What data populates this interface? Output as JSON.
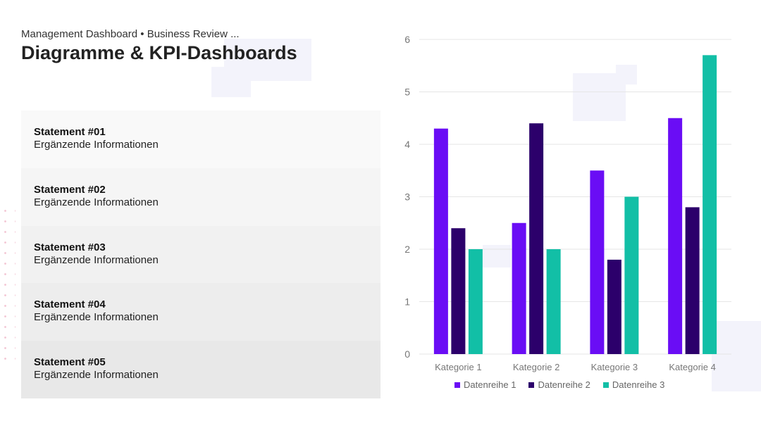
{
  "header": {
    "subtitle": "Management Dashboard • Business Review ...",
    "title": "Diagramme & KPI-Dashboards"
  },
  "statements": [
    {
      "title": "Statement #01",
      "info": "Ergänzende Informationen"
    },
    {
      "title": "Statement #02",
      "info": "Ergänzende Informationen"
    },
    {
      "title": "Statement #03",
      "info": "Ergänzende Informationen"
    },
    {
      "title": "Statement #04",
      "info": "Ergänzende Informationen"
    },
    {
      "title": "Statement #05",
      "info": "Ergänzende Informationen"
    }
  ],
  "statement_colors": [
    "#f9f9f9",
    "#f5f5f5",
    "#f1f1f1",
    "#ededed",
    "#e8e8e8"
  ],
  "chart_data": {
    "type": "bar",
    "categories": [
      "Kategorie 1",
      "Kategorie 2",
      "Kategorie 3",
      "Kategorie 4"
    ],
    "series": [
      {
        "name": "Datenreihe 1",
        "values": [
          4.3,
          2.5,
          3.5,
          4.5
        ],
        "color": "#6a0df5"
      },
      {
        "name": "Datenreihe 2",
        "values": [
          2.4,
          4.4,
          1.8,
          2.8
        ],
        "color": "#2c006b"
      },
      {
        "name": "Datenreihe 3",
        "values": [
          2.0,
          2.0,
          3.0,
          5.7
        ],
        "color": "#12bfa6"
      }
    ],
    "ylim": [
      0,
      6
    ],
    "yticks": [
      "0",
      "1",
      "2",
      "3",
      "4",
      "5",
      "6"
    ],
    "grid": true,
    "legend_position": "bottom"
  }
}
